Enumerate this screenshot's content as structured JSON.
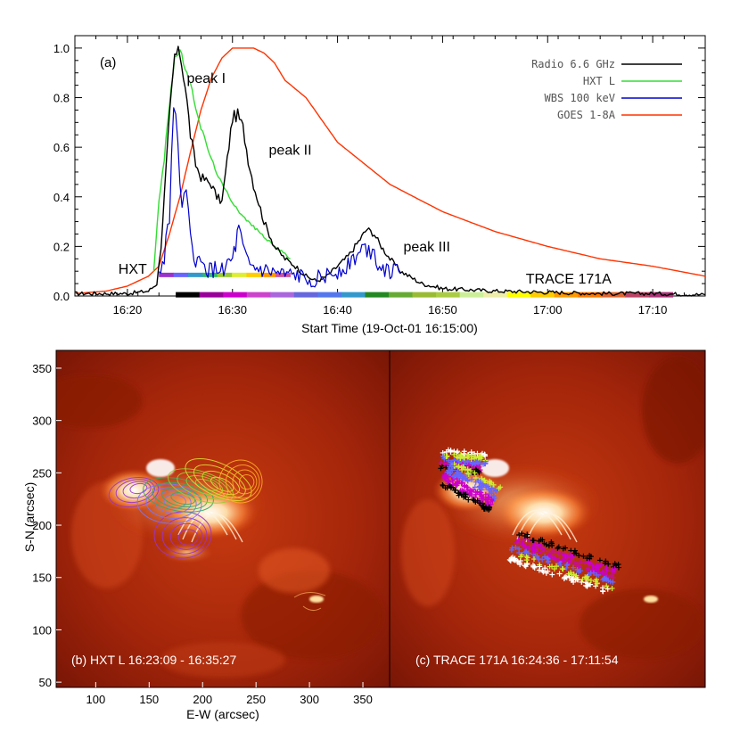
{
  "chart_data": [
    {
      "type": "line",
      "panel_label": "(a)",
      "xlabel": "Start Time (19-Oct-01 16:15:00)",
      "xlim": [
        15,
        75
      ],
      "ylim": [
        0,
        1.05
      ],
      "x_ticks": [
        20,
        30,
        40,
        50,
        60,
        70
      ],
      "x_tick_labels": [
        "16:20",
        "16:30",
        "16:40",
        "16:50",
        "17:00",
        "17:10"
      ],
      "y_ticks": [
        0,
        0.2,
        0.4,
        0.6,
        0.8,
        1.0
      ],
      "y_tick_labels": [
        "0.0",
        "0.2",
        "0.4",
        "0.6",
        "0.8",
        "1.0"
      ],
      "legend_position": "top-right",
      "series": [
        {
          "name": "Radio 6.6 GHz",
          "color": "#000000",
          "x": [
            15,
            20,
            22,
            22.8,
            23.2,
            24,
            24.5,
            25,
            25.5,
            26,
            26.5,
            27,
            28,
            28.5,
            29,
            29.5,
            30,
            30.5,
            31,
            31.5,
            32,
            33,
            34,
            35,
            36,
            37,
            38,
            39,
            40,
            41,
            42,
            42.8,
            43.5,
            44,
            45,
            46,
            48,
            50,
            55,
            60,
            65,
            70,
            75
          ],
          "y": [
            0.01,
            0.01,
            0.02,
            0.05,
            0.2,
            0.72,
            0.97,
            0.98,
            0.85,
            0.65,
            0.53,
            0.48,
            0.45,
            0.4,
            0.38,
            0.55,
            0.72,
            0.73,
            0.68,
            0.55,
            0.45,
            0.3,
            0.2,
            0.15,
            0.12,
            0.08,
            0.06,
            0.08,
            0.12,
            0.16,
            0.22,
            0.27,
            0.25,
            0.21,
            0.15,
            0.1,
            0.05,
            0.03,
            0.02,
            0.015,
            0.01,
            0.01,
            0.005
          ]
        },
        {
          "name": "HXT L",
          "color": "#33dd33",
          "x": [
            22.5,
            23,
            23.5,
            24,
            24.5,
            25,
            25.5,
            26,
            27,
            28,
            29,
            30,
            31,
            32,
            33,
            34,
            35,
            35.5
          ],
          "y": [
            0.1,
            0.38,
            0.55,
            0.78,
            0.96,
            0.99,
            0.92,
            0.85,
            0.68,
            0.55,
            0.45,
            0.38,
            0.32,
            0.28,
            0.24,
            0.2,
            0.17,
            0.15
          ]
        },
        {
          "name": "WBS 100 keV",
          "color": "#0000cc",
          "x": [
            23,
            23.5,
            24,
            24.4,
            24.8,
            25.2,
            25.6,
            26,
            26.5,
            27,
            28,
            29,
            30,
            30.6,
            31,
            31.5,
            32,
            33,
            34,
            35,
            36,
            37,
            38,
            39,
            40,
            41,
            42,
            42.8,
            43.5,
            44,
            45,
            46
          ],
          "y": [
            0.08,
            0.16,
            0.35,
            0.8,
            0.55,
            0.42,
            0.38,
            0.22,
            0.15,
            0.12,
            0.1,
            0.11,
            0.14,
            0.26,
            0.18,
            0.12,
            0.11,
            0.1,
            0.09,
            0.08,
            0.08,
            0.07,
            0.07,
            0.08,
            0.1,
            0.13,
            0.17,
            0.2,
            0.17,
            0.13,
            0.1,
            0.09
          ]
        },
        {
          "name": "GOES 1-8A",
          "color": "#ff3300",
          "x": [
            15,
            18,
            20,
            22,
            23,
            24,
            25,
            26,
            27,
            28,
            29,
            30,
            32,
            33,
            34,
            35,
            37,
            40,
            45,
            50,
            55,
            60,
            65,
            70,
            75
          ],
          "y": [
            0.01,
            0.02,
            0.04,
            0.08,
            0.12,
            0.25,
            0.4,
            0.58,
            0.75,
            0.88,
            0.96,
            1.0,
            1.0,
            0.98,
            0.94,
            0.87,
            0.8,
            0.62,
            0.45,
            0.34,
            0.26,
            0.2,
            0.15,
            0.12,
            0.08
          ]
        }
      ],
      "annotations": [
        {
          "text": "peak I",
          "x": 27.5,
          "y": 0.86
        },
        {
          "text": "peak II",
          "x": 35.5,
          "y": 0.57
        },
        {
          "text": "peak III",
          "x": 48.5,
          "y": 0.18
        },
        {
          "text": "HXT",
          "x": 20.5,
          "y": 0.09
        },
        {
          "text": "TRACE 171A",
          "x": 62,
          "y": 0.05
        }
      ],
      "hxt_bar": {
        "y": 0.085,
        "start": 23,
        "end": 35.5,
        "colors": [
          "#9933cc",
          "#6666ff",
          "#3399cc",
          "#33bb66",
          "#99cc33",
          "#ddee33",
          "#ffcc00",
          "#ff9900",
          "#cc5599"
        ]
      },
      "trace_bar": {
        "y": 0.005,
        "start": 24.6,
        "end": 71.9,
        "colors": [
          "#000000",
          "#990099",
          "#cc00cc",
          "#cc44cc",
          "#aa66dd",
          "#6666dd",
          "#5577ee",
          "#3399cc",
          "#228822",
          "#66aa33",
          "#99bb33",
          "#aacc44",
          "#ccee99",
          "#eeeeaa",
          "#ffff00",
          "#ffcc00",
          "#ff9900",
          "#ff7700",
          "#dd6633",
          "#bb4466",
          "#aa3377"
        ]
      }
    },
    {
      "type": "heatmap",
      "panel_label": "(b) HXT L 16:23:09 - 16:35:27",
      "xlabel": "E-W (arcsec)",
      "ylabel": "S-N (arcsec)",
      "xlim": [
        63,
        375
      ],
      "ylim": [
        45,
        367
      ],
      "x_ticks": [
        100,
        150,
        200,
        250,
        300,
        350
      ],
      "y_ticks": [
        50,
        100,
        150,
        200,
        250,
        300,
        350
      ],
      "contour_colors": [
        "#9933cc",
        "#7777ff",
        "#33aa66",
        "#99cc33",
        "#dddd33",
        "#ffaa22"
      ]
    },
    {
      "type": "heatmap",
      "panel_label": "(c) TRACE 171A 16:24:36 - 17:11:54",
      "xlim": [
        63,
        375
      ],
      "ylim": [
        45,
        367
      ],
      "marker_colors": [
        "#000000",
        "#cc00cc",
        "#6666ff",
        "#ccee33",
        "#ffffff"
      ]
    }
  ]
}
